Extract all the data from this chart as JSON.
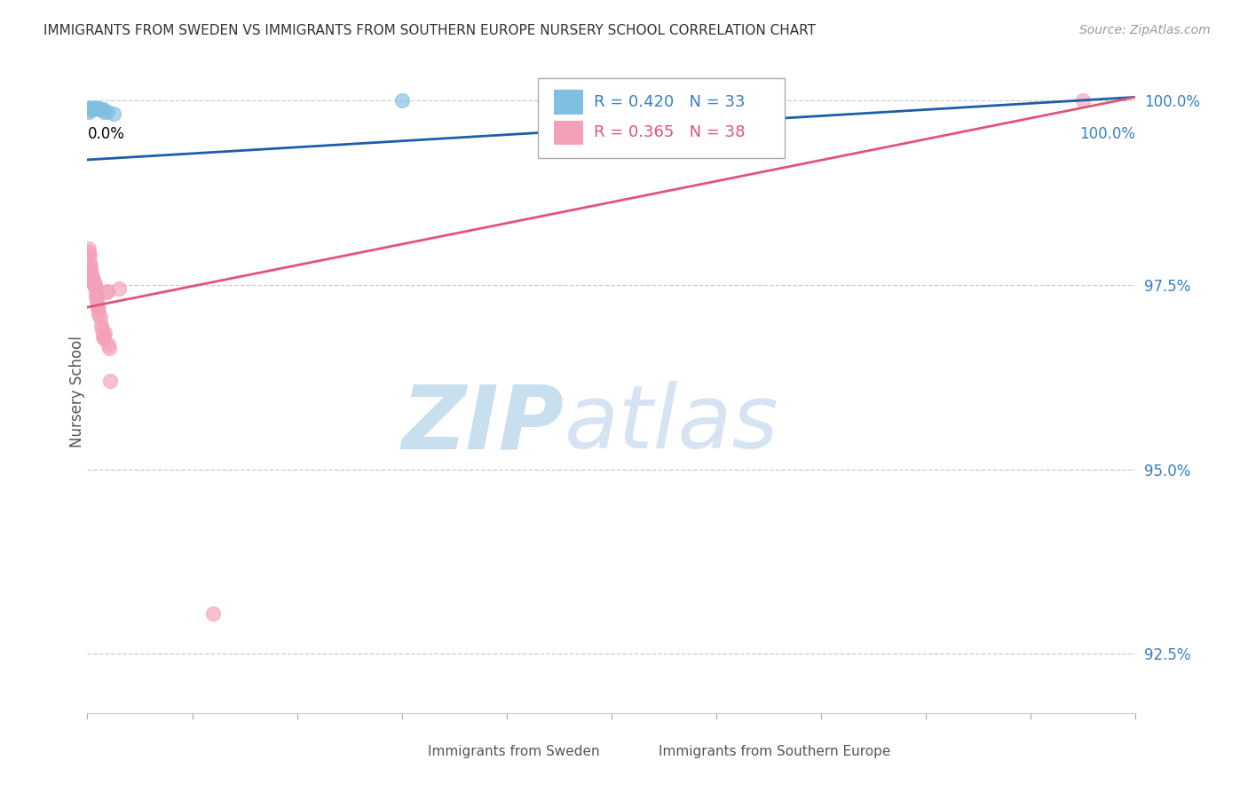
{
  "title": "IMMIGRANTS FROM SWEDEN VS IMMIGRANTS FROM SOUTHERN EUROPE NURSERY SCHOOL CORRELATION CHART",
  "source": "Source: ZipAtlas.com",
  "ylabel": "Nursery School",
  "legend_label1": "Immigrants from Sweden",
  "legend_label2": "Immigrants from Southern Europe",
  "R1": 0.42,
  "N1": 33,
  "R2": 0.365,
  "N2": 38,
  "color_blue": "#7fbfdf",
  "color_pink": "#f4a0b8",
  "color_blue_line": "#1a5fa8",
  "color_pink_line": "#e05478",
  "color_blue_text": "#3a7fc1",
  "color_axis_text": "#3a7fc1",
  "xlim": [
    0.0,
    1.0
  ],
  "ylim": [
    0.917,
    1.004
  ],
  "yticks": [
    0.925,
    0.95,
    0.975,
    1.0
  ],
  "ytick_labels": [
    "92.5%",
    "95.0%",
    "97.5%",
    "100.0%"
  ],
  "sweden_x": [
    0.001,
    0.002,
    0.002,
    0.002,
    0.003,
    0.003,
    0.003,
    0.004,
    0.004,
    0.004,
    0.005,
    0.005,
    0.005,
    0.005,
    0.006,
    0.006,
    0.007,
    0.007,
    0.008,
    0.008,
    0.008,
    0.009,
    0.009,
    0.01,
    0.01,
    0.011,
    0.012,
    0.013,
    0.015,
    0.016,
    0.019,
    0.025,
    0.3
  ],
  "sweden_y": [
    0.9985,
    0.999,
    0.999,
    0.999,
    0.999,
    0.999,
    0.999,
    0.9988,
    0.9988,
    0.9988,
    0.999,
    0.999,
    0.999,
    0.999,
    0.999,
    0.999,
    0.999,
    0.999,
    0.999,
    0.999,
    0.999,
    0.999,
    0.999,
    0.999,
    0.999,
    0.999,
    0.9988,
    0.9988,
    0.9988,
    0.9985,
    0.9985,
    0.9982,
    1.0
  ],
  "south_x": [
    0.001,
    0.001,
    0.002,
    0.002,
    0.003,
    0.003,
    0.003,
    0.004,
    0.004,
    0.005,
    0.005,
    0.006,
    0.006,
    0.007,
    0.007,
    0.008,
    0.008,
    0.009,
    0.009,
    0.01,
    0.01,
    0.011,
    0.011,
    0.012,
    0.013,
    0.014,
    0.015,
    0.016,
    0.016,
    0.017,
    0.018,
    0.019,
    0.02,
    0.021,
    0.022,
    0.03,
    0.12,
    0.95
  ],
  "south_y": [
    0.98,
    0.9795,
    0.979,
    0.978,
    0.9775,
    0.977,
    0.977,
    0.9765,
    0.9765,
    0.976,
    0.9758,
    0.975,
    0.975,
    0.9752,
    0.9748,
    0.974,
    0.9735,
    0.973,
    0.9728,
    0.972,
    0.972,
    0.9715,
    0.971,
    0.9705,
    0.9695,
    0.969,
    0.968,
    0.9678,
    0.968,
    0.9685,
    0.974,
    0.9742,
    0.967,
    0.9665,
    0.962,
    0.9745,
    0.9305,
    1.0
  ],
  "blue_line_x": [
    0.0,
    1.0
  ],
  "blue_line_y": [
    0.992,
    1.0005
  ],
  "pink_line_x": [
    0.0,
    1.0
  ],
  "pink_line_y": [
    0.972,
    1.0005
  ],
  "xtick_positions": [
    0.0,
    0.1,
    0.2,
    0.3,
    0.4,
    0.5,
    0.6,
    0.7,
    0.8,
    0.9,
    1.0
  ]
}
